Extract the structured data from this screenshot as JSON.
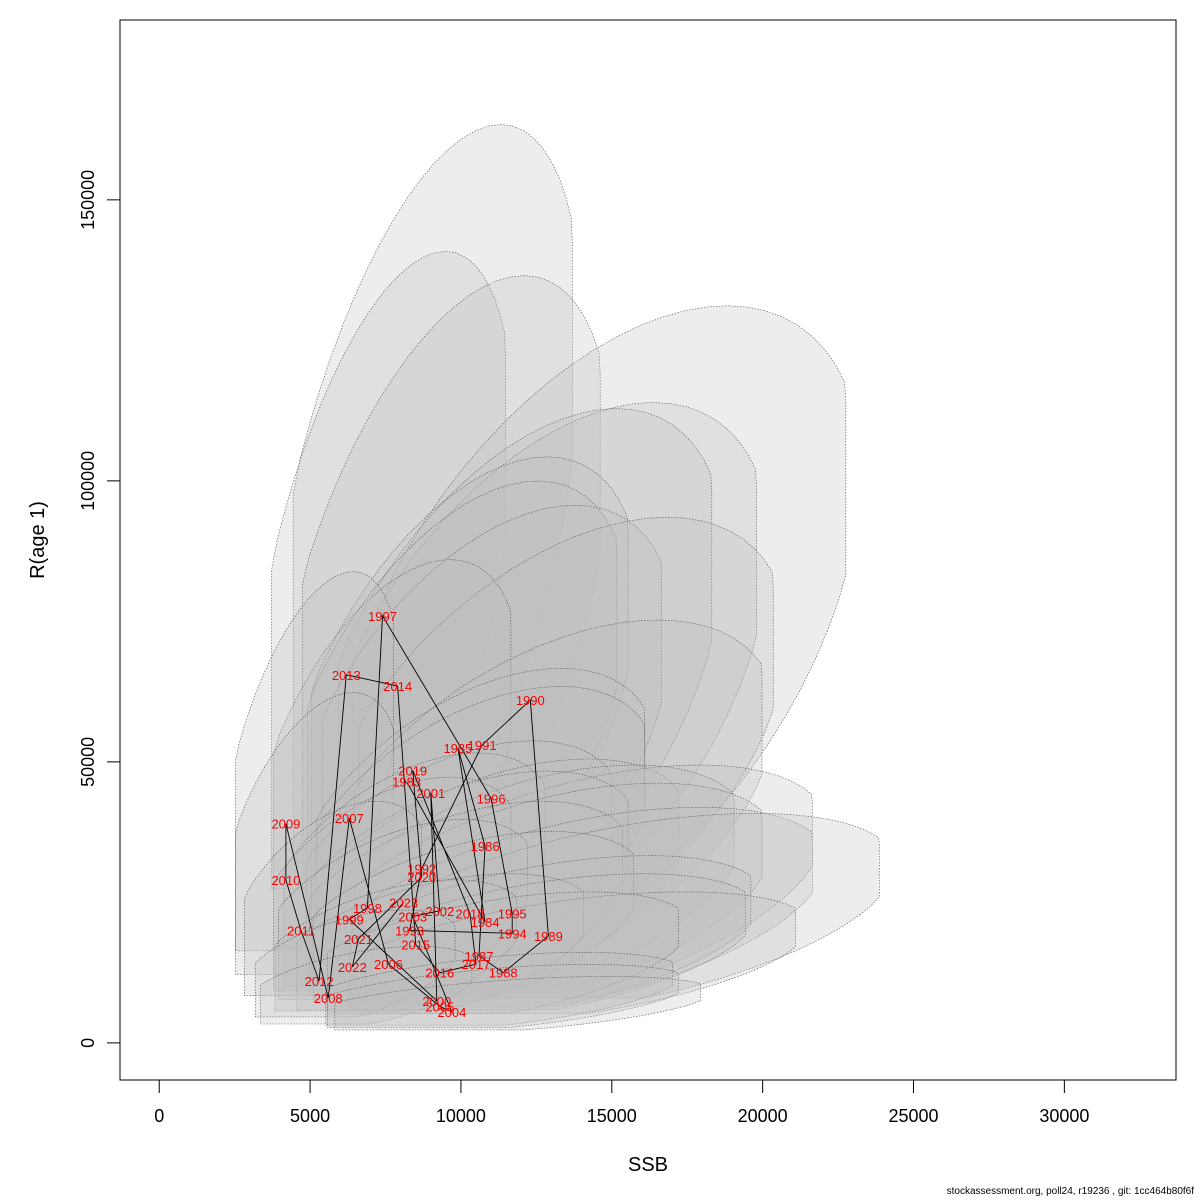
{
  "chart_data": {
    "type": "scatter",
    "title": "",
    "xlabel": "SSB",
    "ylabel": "R(age 1)",
    "xlim": [
      -1300,
      33700
    ],
    "ylim": [
      -6600,
      182000
    ],
    "xticks": [
      0,
      5000,
      10000,
      15000,
      20000,
      25000,
      30000
    ],
    "yticks": [
      0,
      50000,
      100000,
      150000
    ],
    "grid": false,
    "colors": {
      "point_label": "#ff0000",
      "path_line": "#000000",
      "ellipse_fill": "#bebebe",
      "ellipse_stroke": "#555555"
    },
    "points": [
      {
        "year": "1983",
        "ssb": 8200,
        "rec": 46500
      },
      {
        "year": "1984",
        "ssb": 10800,
        "rec": 21500
      },
      {
        "year": "1985",
        "ssb": 9900,
        "rec": 52500
      },
      {
        "year": "1986",
        "ssb": 10800,
        "rec": 35000
      },
      {
        "year": "1987",
        "ssb": 10600,
        "rec": 15500
      },
      {
        "year": "1988",
        "ssb": 11400,
        "rec": 12500
      },
      {
        "year": "1989",
        "ssb": 12900,
        "rec": 19000
      },
      {
        "year": "1990",
        "ssb": 12300,
        "rec": 61000
      },
      {
        "year": "1991",
        "ssb": 10700,
        "rec": 53000
      },
      {
        "year": "1992",
        "ssb": 8700,
        "rec": 31000
      },
      {
        "year": "1993",
        "ssb": 8300,
        "rec": 20000
      },
      {
        "year": "1994",
        "ssb": 11700,
        "rec": 19500
      },
      {
        "year": "1995",
        "ssb": 11700,
        "rec": 23000
      },
      {
        "year": "1996",
        "ssb": 11000,
        "rec": 43500
      },
      {
        "year": "1997",
        "ssb": 7400,
        "rec": 76000
      },
      {
        "year": "1998",
        "ssb": 6900,
        "rec": 24000
      },
      {
        "year": "1999",
        "ssb": 6300,
        "rec": 22000
      },
      {
        "year": "2000",
        "ssb": 9200,
        "rec": 7500
      },
      {
        "year": "2001",
        "ssb": 9000,
        "rec": 44500
      },
      {
        "year": "2002",
        "ssb": 9300,
        "rec": 23500
      },
      {
        "year": "2003",
        "ssb": 8400,
        "rec": 22500
      },
      {
        "year": "2004",
        "ssb": 9700,
        "rec": 5500
      },
      {
        "year": "2005",
        "ssb": 9300,
        "rec": 6500
      },
      {
        "year": "2006",
        "ssb": 7600,
        "rec": 14000
      },
      {
        "year": "2007",
        "ssb": 6300,
        "rec": 40000
      },
      {
        "year": "2008",
        "ssb": 5600,
        "rec": 8000
      },
      {
        "year": "2009",
        "ssb": 4200,
        "rec": 39000
      },
      {
        "year": "2010",
        "ssb": 4200,
        "rec": 29000
      },
      {
        "year": "2011",
        "ssb": 4700,
        "rec": 20000
      },
      {
        "year": "2012",
        "ssb": 5300,
        "rec": 11000
      },
      {
        "year": "2013",
        "ssb": 6200,
        "rec": 65500
      },
      {
        "year": "2014",
        "ssb": 7900,
        "rec": 63500
      },
      {
        "year": "2015",
        "ssb": 8500,
        "rec": 17500
      },
      {
        "year": "2016",
        "ssb": 9300,
        "rec": 12500
      },
      {
        "year": "2017",
        "ssb": 10500,
        "rec": 14000
      },
      {
        "year": "2018",
        "ssb": 10300,
        "rec": 23000
      },
      {
        "year": "2019",
        "ssb": 8400,
        "rec": 48500
      },
      {
        "year": "2020",
        "ssb": 8700,
        "rec": 29500
      },
      {
        "year": "2021",
        "ssb": 6600,
        "rec": 18500
      },
      {
        "year": "2022",
        "ssb": 6400,
        "rec": 13500
      },
      {
        "year": "2023",
        "ssb": 8100,
        "rec": 25000
      }
    ]
  },
  "footer_text": "stockassessment.org, poll24, r19236 , git: 1cc464b80f6f"
}
